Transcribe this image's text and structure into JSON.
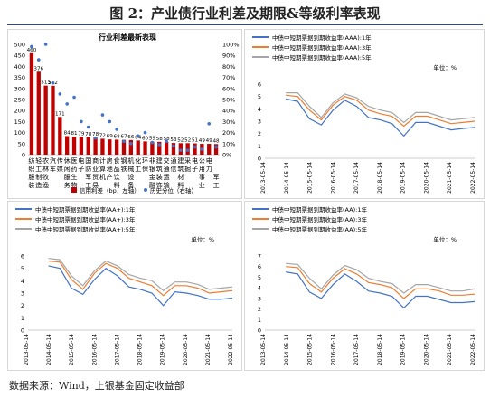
{
  "figure_title": "图 2：产业债行业利差及期限&等级利率表现",
  "source": "数据来源：Wind，上银基金固定收益部",
  "chart_data": [
    {
      "type": "bar",
      "title": "行业利差最新表现",
      "left_axis": {
        "ylim": [
          0,
          500
        ],
        "ticks": [
          "0",
          "50",
          "100",
          "150",
          "200",
          "250",
          "300",
          "350",
          "400",
          "450",
          "500"
        ]
      },
      "right_axis": {
        "ylim": [
          0,
          100
        ],
        "ticks": [
          "0%",
          "10%",
          "20%",
          "30%",
          "40%",
          "50%",
          "60%",
          "70%",
          "80%",
          "90%",
          "100%"
        ]
      },
      "categories": [
        "纺织服装",
        "轻工制造",
        "农林牧渔",
        "汽车",
        "传媒",
        "休闲服务",
        "医药生物",
        "电子",
        "国防军工",
        "商业贸易",
        "计算机",
        "房地产",
        "食品饮料",
        "钢铁",
        "机械设备",
        "化工",
        "电气设备",
        "家用电器",
        "环保",
        "有色金属",
        "建筑装饰",
        "交通运输",
        "通信",
        "建筑材料",
        "采掘",
        "电子",
        "公用事业"
      ],
      "category_rows": [
        [
          "纺",
          "轻",
          "农",
          "汽",
          "传",
          "休",
          "医",
          "电",
          "国",
          "商",
          "计",
          "房",
          "食",
          "钢",
          "机",
          "化",
          "环",
          "非",
          "建",
          "交",
          "通",
          "建",
          "采",
          "电",
          "公",
          "电",
          ""
        ],
        [
          "织",
          "工",
          "林",
          "车",
          "媒",
          "闲",
          "药",
          "子",
          "防",
          "业",
          "算",
          "地",
          "品",
          "铁",
          "械",
          "工",
          "保",
          "银",
          "筑",
          "通",
          "信",
          "筑",
          "掘",
          "子",
          "用",
          "力",
          ""
        ],
        [
          "服",
          "制",
          "牧",
          "",
          "",
          "服",
          "生",
          "",
          "军",
          "贸",
          "机",
          "产",
          "饮",
          "",
          "设",
          "",
          "",
          "金",
          "装",
          "运",
          "",
          "材",
          "",
          "",
          "事",
          "",
          "军"
        ],
        [
          "装",
          "造",
          "渔",
          "",
          "",
          "务",
          "物",
          "",
          "工",
          "易",
          "",
          "",
          "料",
          "",
          "备",
          "",
          "",
          "融",
          "饰",
          "输",
          "",
          "料",
          "",
          "",
          "业",
          "",
          "工"
        ]
      ],
      "series": [
        {
          "name": "信用利差（bp，左轴）",
          "values": [
            460,
            376,
            313,
            312,
            171,
            84,
            81,
            79,
            78,
            78,
            72,
            69,
            68,
            67,
            66,
            64,
            60,
            59,
            58,
            58,
            53,
            52,
            52,
            51,
            49,
            49,
            48
          ]
        },
        {
          "name": "历史分位（右轴）",
          "values": [
            98,
            86,
            100,
            65,
            55,
            46,
            52,
            30,
            25,
            15,
            36,
            30,
            23,
            12,
            10,
            17,
            20,
            11,
            9,
            12,
            8,
            4,
            4,
            7,
            5,
            28,
            7
          ]
        }
      ],
      "data_labels": [
        "460",
        "376",
        "313",
        "312",
        "171",
        "84",
        "81",
        "79",
        "78",
        "78",
        "72",
        "69",
        "68",
        "67",
        "66",
        "64",
        "60",
        "59",
        "58",
        "58",
        "53",
        "52",
        "52",
        "51",
        "49",
        "49",
        "48"
      ]
    },
    {
      "type": "line",
      "legend": [
        "中债中短期票据到期收益率(AAA):1年",
        "中债中短期票据到期收益率(AAA):3年",
        "中债中短期票据到期收益率(AAA):5年"
      ],
      "unit_label": "单位：%",
      "x_ticks": [
        "2013-05-14",
        "2014-05-14",
        "2015-05-14",
        "2016-05-14",
        "2017-05-14",
        "2018-05-14",
        "2019-05-14",
        "2020-05-14",
        "2021-05-14",
        "2022-05-14"
      ],
      "ylim": [
        0,
        6
      ],
      "y_ticks": [
        "0",
        "1",
        "2",
        "3",
        "4",
        "5",
        "6"
      ],
      "colors": [
        "#4472c4",
        "#ed7d31",
        "#a5a5a5"
      ],
      "series": [
        {
          "values": [
            4.8,
            4.6,
            3.2,
            2.7,
            3.9,
            4.7,
            4.2,
            3.3,
            3.1,
            2.8,
            1.8,
            2.9,
            2.9,
            2.6,
            2.3,
            2.4,
            2.5
          ]
        },
        {
          "values": [
            5.1,
            5.0,
            3.9,
            3.1,
            4.3,
            5.0,
            4.7,
            3.9,
            3.6,
            3.4,
            2.6,
            3.4,
            3.4,
            3.1,
            2.8,
            2.9,
            3.0
          ]
        },
        {
          "values": [
            5.3,
            5.3,
            4.2,
            3.3,
            4.5,
            5.2,
            4.9,
            4.2,
            3.9,
            3.7,
            2.9,
            3.7,
            3.7,
            3.4,
            3.1,
            3.2,
            3.3
          ]
        }
      ]
    },
    {
      "type": "line",
      "legend": [
        "中债中短期票据到期收益率(AA+):1年",
        "中债中短期票据到期收益率(AA+):3年",
        "中债中短期票据到期收益率(AA+):5年"
      ],
      "unit_label": "单位：%",
      "x_ticks": [
        "2013-05-14",
        "2014-05-14",
        "2015-05-14",
        "2016-05-14",
        "2017-05-14",
        "2018-05-14",
        "2019-05-14",
        "2020-05-14",
        "2021-05-14",
        "2022-05-14"
      ],
      "ylim": [
        0,
        6
      ],
      "y_ticks": [
        "0",
        "1",
        "2",
        "3",
        "4",
        "5",
        "6"
      ],
      "colors": [
        "#4472c4",
        "#ed7d31",
        "#a5a5a5"
      ],
      "series": [
        {
          "values": [
            5.2,
            5.0,
            3.4,
            2.9,
            4.1,
            5.0,
            4.4,
            3.5,
            3.3,
            3.0,
            2.0,
            3.1,
            3.0,
            2.8,
            2.5,
            2.5,
            2.6
          ]
        },
        {
          "values": [
            5.6,
            5.5,
            4.1,
            3.3,
            4.6,
            5.4,
            5.0,
            4.2,
            3.9,
            3.6,
            2.8,
            3.6,
            3.6,
            3.4,
            3.0,
            3.1,
            3.2
          ]
        },
        {
          "values": [
            5.8,
            5.7,
            4.4,
            3.6,
            4.8,
            5.6,
            5.2,
            4.5,
            4.2,
            4.0,
            3.2,
            3.9,
            3.9,
            3.7,
            3.3,
            3.4,
            3.5
          ]
        }
      ]
    },
    {
      "type": "line",
      "legend": [
        "中债中短期票据到期收益率(AA):1年",
        "中债中短期票据到期收益率(AA):3年",
        "中债中短期票据到期收益率(AA):5年"
      ],
      "unit_label": "单位：%",
      "x_ticks": [
        "2013-05-14",
        "2014-05-14",
        "2015-05-14",
        "2016-05-14",
        "2017-05-14",
        "2018-05-14",
        "2019-05-14",
        "2020-05-14",
        "2021-05-14",
        "2022-05-14"
      ],
      "ylim": [
        0,
        7
      ],
      "y_ticks": [
        "0",
        "1",
        "2",
        "3",
        "4",
        "5",
        "6",
        "7"
      ],
      "colors": [
        "#4472c4",
        "#ed7d31",
        "#a5a5a5"
      ],
      "series": [
        {
          "values": [
            5.5,
            5.3,
            3.6,
            3.0,
            4.3,
            5.3,
            4.6,
            3.7,
            3.5,
            3.2,
            2.1,
            3.2,
            3.2,
            2.9,
            2.6,
            2.6,
            2.7
          ]
        },
        {
          "values": [
            6.0,
            5.9,
            4.4,
            3.6,
            4.9,
            5.8,
            5.3,
            4.5,
            4.3,
            4.0,
            3.0,
            3.9,
            3.9,
            3.7,
            3.3,
            3.3,
            3.4
          ]
        },
        {
          "values": [
            6.3,
            6.2,
            4.9,
            3.9,
            5.2,
            6.1,
            5.7,
            4.9,
            4.6,
            4.4,
            3.5,
            4.3,
            4.3,
            4.0,
            3.7,
            3.7,
            3.9
          ]
        }
      ]
    }
  ]
}
